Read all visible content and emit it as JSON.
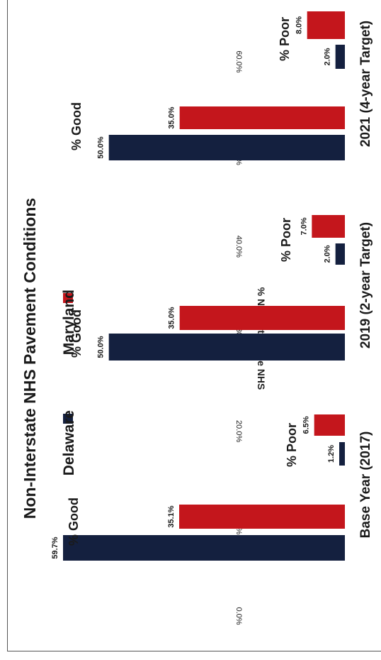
{
  "chart_data": {
    "type": "bar",
    "orientation": "horizontal",
    "title": "Non-Interstate NHS Pavement Conditions",
    "ylabel": "% Non-Interstate NHS",
    "xlim": [
      0,
      60
    ],
    "ticks": [
      "0.0%",
      "10.0%",
      "20.0%",
      "30.0%",
      "40.0%",
      "50.0%",
      "60.0%"
    ],
    "legend_position": "top",
    "series": [
      {
        "name": "Delaware",
        "color": "#14203f"
      },
      {
        "name": "Maryland",
        "color": "#c4161c"
      }
    ],
    "groups": [
      {
        "label": "Base Year (2017)",
        "metrics": [
          {
            "label": "% Good",
            "values": [
              59.7,
              35.1
            ],
            "value_labels": [
              "59.7%",
              "35.1%"
            ]
          },
          {
            "label": "% Poor",
            "values": [
              1.2,
              6.5
            ],
            "value_labels": [
              "1.2%",
              "6.5%"
            ]
          }
        ]
      },
      {
        "label": "2019  (2-year Target)",
        "metrics": [
          {
            "label": "% Good",
            "values": [
              50.0,
              35.0
            ],
            "value_labels": [
              "50.0%",
              "35.0%"
            ]
          },
          {
            "label": "% Poor",
            "values": [
              2.0,
              7.0
            ],
            "value_labels": [
              "2.0%",
              "7.0%"
            ]
          }
        ]
      },
      {
        "label": "2021  (4-year Target)",
        "metrics": [
          {
            "label": "% Good",
            "values": [
              50.0,
              35.0
            ],
            "value_labels": [
              "50.0%",
              "35.0%"
            ]
          },
          {
            "label": "% Poor",
            "values": [
              2.0,
              8.0
            ],
            "value_labels": [
              "2.0%",
              "8.0%"
            ]
          }
        ]
      }
    ]
  }
}
